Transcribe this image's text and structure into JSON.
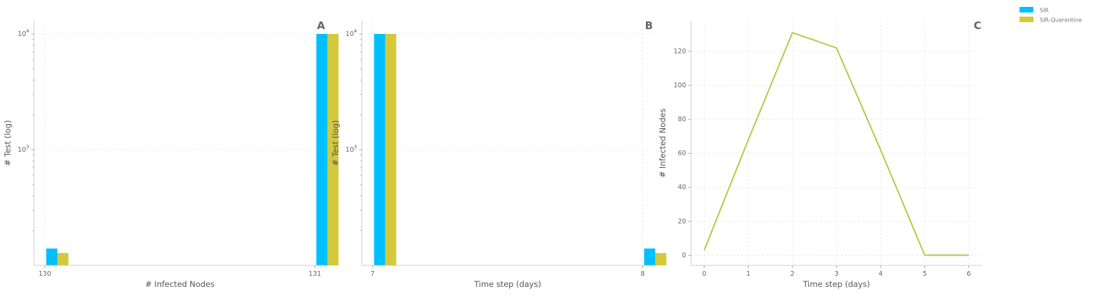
{
  "colors": {
    "sir": "#00bfff",
    "sir_quarantine": "#d4c93a",
    "line": "#b5c94a"
  },
  "legend": {
    "placement": "top-right",
    "entries": [
      {
        "label": "SIR",
        "color": "#00bfff"
      },
      {
        "label": "SIR-Quarantine",
        "color": "#d4c93a"
      }
    ]
  },
  "chart_data": [
    {
      "type": "bar",
      "panel_label": "A",
      "xlabel": "# Infected Nodes",
      "ylabel": "# Test (log)",
      "yscale": "log",
      "ylim": [
        100,
        13000
      ],
      "xlim": [
        129.96,
        131.04
      ],
      "x_ticks": [
        "130",
        "131"
      ],
      "y_ticks": [
        {
          "value": 1000,
          "base": "10",
          "exp": "3"
        },
        {
          "value": 10000,
          "base": "10",
          "exp": "4"
        }
      ],
      "grid": true,
      "series": [
        {
          "name": "SIR",
          "x": [
            130,
            131
          ],
          "values": [
            140,
            10000
          ]
        },
        {
          "name": "SIR-Quarantine",
          "x": [
            130,
            131
          ],
          "values": [
            128,
            10000
          ]
        }
      ]
    },
    {
      "type": "bar",
      "panel_label": "B",
      "xlabel": "Time step (days)",
      "ylabel": "# Test (log)",
      "yscale": "log",
      "ylim": [
        100,
        13000
      ],
      "xlim": [
        6.96,
        8.04
      ],
      "x_ticks": [
        "7",
        "8"
      ],
      "y_ticks": [
        {
          "value": 1000,
          "base": "10",
          "exp": "3"
        },
        {
          "value": 10000,
          "base": "10",
          "exp": "4"
        }
      ],
      "grid": true,
      "series": [
        {
          "name": "SIR",
          "x": [
            7,
            8
          ],
          "values": [
            10000,
            140
          ]
        },
        {
          "name": "SIR-Quarantine",
          "x": [
            7,
            8
          ],
          "values": [
            10000,
            128
          ]
        }
      ]
    },
    {
      "type": "line",
      "panel_label": "C",
      "xlabel": "Time step (days)",
      "ylabel": "# Infected Nodes",
      "xlim": [
        -0.3,
        6.3
      ],
      "ylim": [
        -6,
        138
      ],
      "x_ticks": [
        "0",
        "1",
        "2",
        "3",
        "4",
        "5",
        "6"
      ],
      "y_ticks": [
        "0",
        "20",
        "40",
        "60",
        "80",
        "100",
        "120"
      ],
      "grid": true,
      "series": [
        {
          "x": [
            0,
            1,
            2,
            3,
            4,
            5,
            6
          ],
          "values": [
            3,
            68,
            131,
            122,
            62,
            0,
            0
          ]
        }
      ]
    }
  ]
}
